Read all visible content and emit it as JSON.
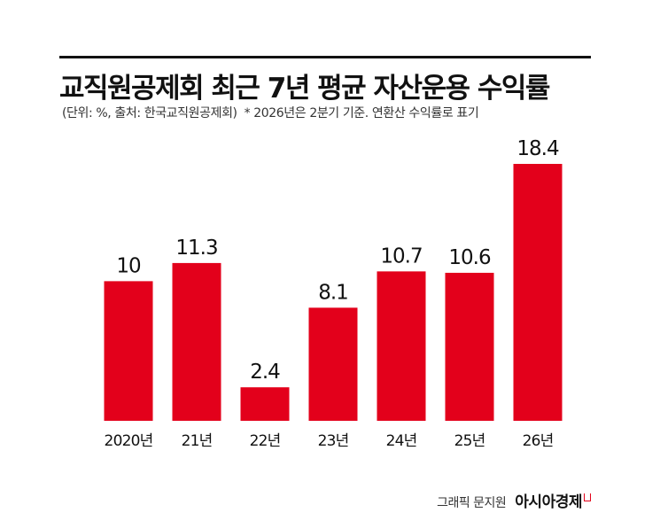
{
  "title": "교직원공제회 최근 7년 평균 자산운용 수익률",
  "subtitle": "(단위: %, 출처: 한국교직원공제회)",
  "note": "* 2026년은 2분기 기준. 연환산 수익률로 표기",
  "credit": "그래픽 문지원",
  "logo": "아시아경제",
  "colors": {
    "bar": "#e3001b",
    "rule": "#111111"
  },
  "chart_data": {
    "type": "bar",
    "categories": [
      "2020년",
      "21년",
      "22년",
      "23년",
      "24년",
      "25년",
      "26년"
    ],
    "values": [
      10,
      11.3,
      2.4,
      8.1,
      10.7,
      10.6,
      18.4
    ],
    "value_labels": [
      "10",
      "11.3",
      "2.4",
      "8.1",
      "10.7",
      "10.6",
      "18.4"
    ],
    "ylim": [
      0,
      18.4
    ],
    "grid": false,
    "legend": "none"
  }
}
